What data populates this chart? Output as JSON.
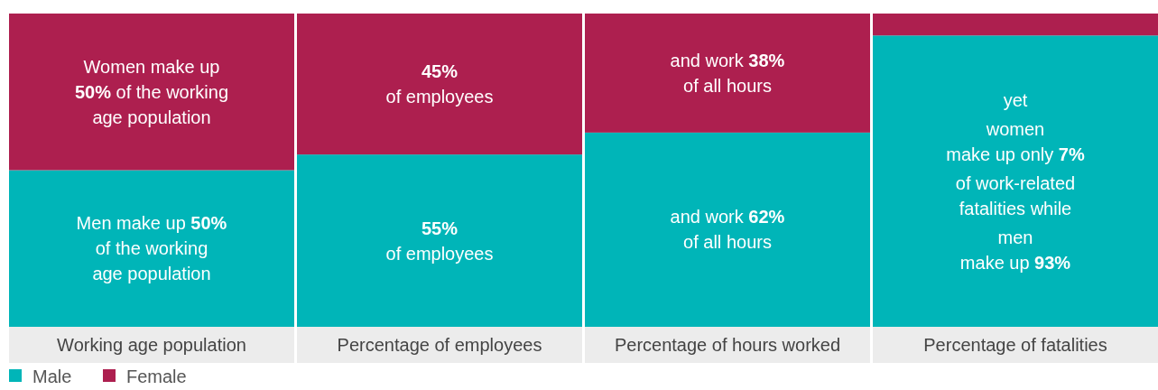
{
  "chart_data": {
    "type": "bar",
    "stacked": true,
    "categories": [
      "Working age population",
      "Percentage of employees",
      "Percentage of hours worked",
      "Percentage of fatalities"
    ],
    "ylim": [
      0,
      100
    ],
    "legend": "bottom left",
    "series": [
      {
        "name": "Male",
        "color": "#00b5b8",
        "values": [
          50,
          55,
          62,
          93
        ],
        "value_labels": [
          "Men make up 50%\nof the working\nage population",
          "55%\nof employees",
          "and work 62%\nof all hours",
          "yet\n\nwomen\nmake up only 7%\n\nof work-related\nfatalities while\n\nmen\nmake up 93%"
        ]
      },
      {
        "name": "Female",
        "color": "#ad1f4f",
        "values": [
          50,
          45,
          38,
          7
        ],
        "value_labels": [
          "Women make up\n50% of the working\nage population",
          "45%\nof employees",
          "and work 38%\nof all hours",
          null
        ]
      }
    ]
  }
}
